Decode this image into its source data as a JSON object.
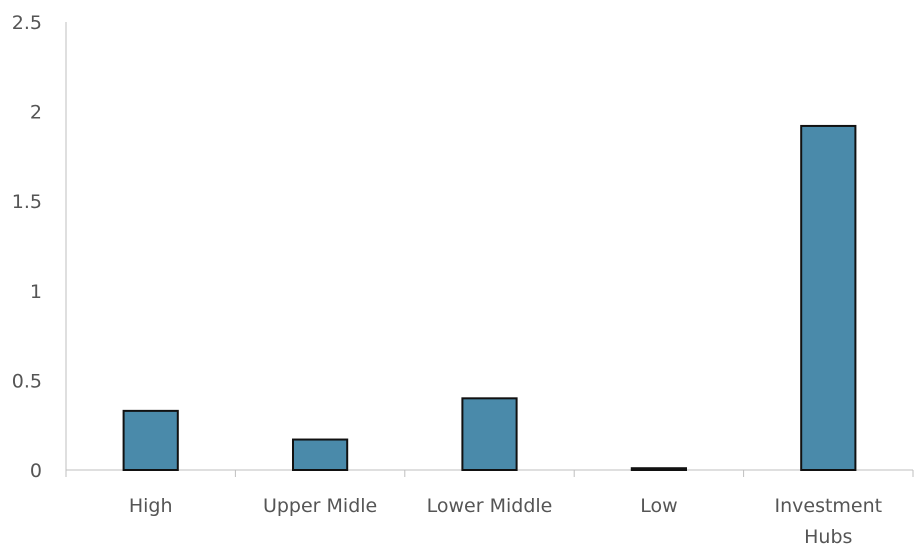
{
  "chart_data": {
    "type": "bar",
    "title": "",
    "xlabel": "",
    "ylabel": "",
    "categories": [
      "High",
      "Upper Midle",
      "Lower Middle",
      "Low",
      "Investment Hubs"
    ],
    "values": [
      0.33,
      0.17,
      0.4,
      0.01,
      1.92
    ],
    "ylim": [
      0,
      2.5
    ],
    "yticks": [
      "0",
      "0.5",
      "1",
      "1.5",
      "2",
      "2.5"
    ],
    "grid": false,
    "legend": "none",
    "bar_color": "#4a8aaa",
    "bar_edge_color": "#111111"
  }
}
